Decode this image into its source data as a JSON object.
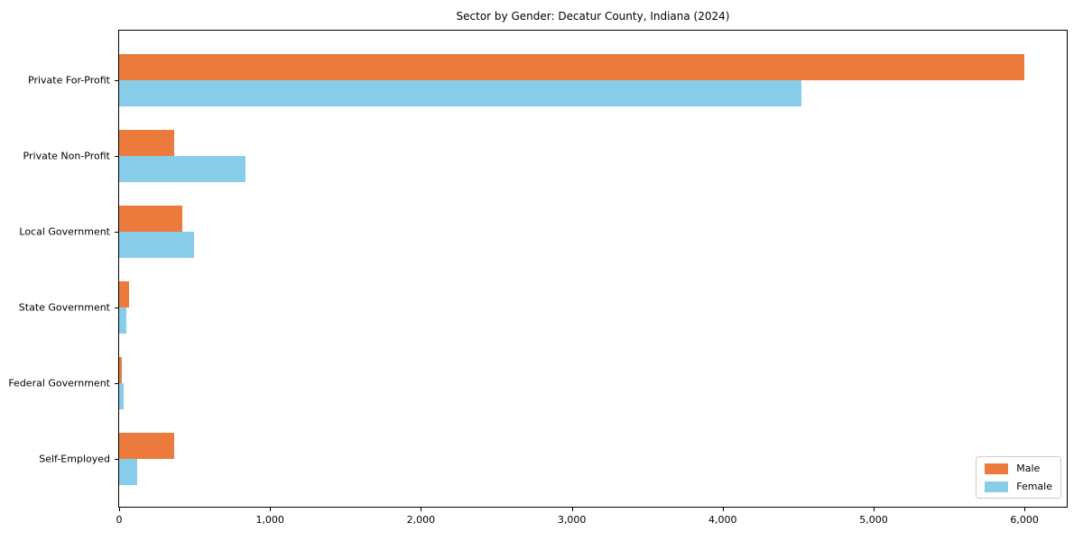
{
  "title": "Sector by Gender: Decatur County, Indiana (2024)",
  "chart_data": {
    "type": "bar",
    "orientation": "horizontal",
    "title": "Sector by Gender: Decatur County, Indiana (2024)",
    "categories": [
      "Private For-Profit",
      "Private Non-Profit",
      "Local Government",
      "State Government",
      "Federal Government",
      "Self-Employed"
    ],
    "series": [
      {
        "name": "Male",
        "color": "#EC7A3C",
        "values": [
          6000,
          365,
          420,
          65,
          15,
          365
        ]
      },
      {
        "name": "Female",
        "color": "#87CDE9",
        "values": [
          4520,
          840,
          495,
          45,
          30,
          120
        ]
      }
    ],
    "xlabel": "",
    "ylabel": "",
    "xlim": [
      0,
      6280
    ],
    "x_ticks": [
      0,
      1000,
      2000,
      3000,
      4000,
      5000,
      6000
    ],
    "x_tick_labels": [
      "0",
      "1,000",
      "2,000",
      "3,000",
      "4,000",
      "5,000",
      "6,000"
    ],
    "grid": false,
    "legend_position": "lower right",
    "axis_color": "#000000",
    "background_color": "#ffffff"
  },
  "legend": {
    "items": [
      {
        "label": "Male",
        "color": "#EC7A3C"
      },
      {
        "label": "Female",
        "color": "#87CDE9"
      }
    ]
  }
}
